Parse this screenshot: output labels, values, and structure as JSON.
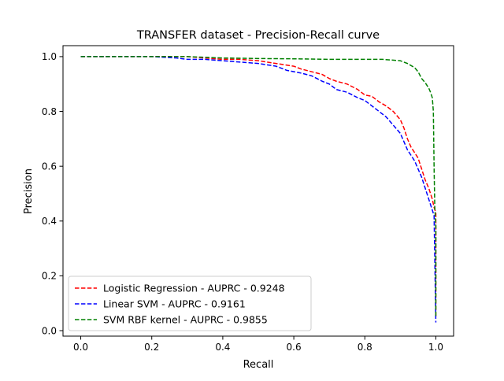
{
  "chart_data": {
    "type": "line",
    "title": "TRANSFER dataset - Precision-Recall curve",
    "xlabel": "Recall",
    "ylabel": "Precision",
    "xlim": [
      -0.05,
      1.05
    ],
    "ylim": [
      -0.02,
      1.04
    ],
    "xticks": [
      "0.0",
      "0.2",
      "0.4",
      "0.6",
      "0.8",
      "1.0"
    ],
    "yticks": [
      "0.0",
      "0.2",
      "0.4",
      "0.6",
      "0.8",
      "1.0"
    ],
    "grid": false,
    "legend_position": "lower-left",
    "series": [
      {
        "name": "Logistic Regression - AUPRC - 0.9248",
        "color": "#ff0000",
        "style": "dashed",
        "x": [
          0.0,
          0.1,
          0.2,
          0.3,
          0.35,
          0.4,
          0.45,
          0.5,
          0.55,
          0.6,
          0.62,
          0.65,
          0.68,
          0.7,
          0.72,
          0.75,
          0.78,
          0.8,
          0.82,
          0.84,
          0.86,
          0.88,
          0.9,
          0.91,
          0.92,
          0.93,
          0.94,
          0.95,
          0.96,
          0.97,
          0.98,
          0.99,
          0.995,
          1.0,
          1.0
        ],
        "y": [
          1.0,
          1.0,
          1.0,
          1.0,
          0.995,
          0.99,
          0.99,
          0.985,
          0.975,
          0.965,
          0.955,
          0.945,
          0.935,
          0.92,
          0.91,
          0.9,
          0.88,
          0.86,
          0.855,
          0.835,
          0.82,
          0.8,
          0.77,
          0.74,
          0.7,
          0.67,
          0.65,
          0.63,
          0.59,
          0.55,
          0.52,
          0.48,
          0.45,
          0.43,
          0.05
        ]
      },
      {
        "name": "Linear SVM - AUPRC - 0.9161",
        "color": "#0000ff",
        "style": "dashed",
        "x": [
          0.0,
          0.1,
          0.2,
          0.27,
          0.3,
          0.35,
          0.4,
          0.45,
          0.5,
          0.55,
          0.58,
          0.62,
          0.65,
          0.68,
          0.7,
          0.72,
          0.75,
          0.78,
          0.8,
          0.82,
          0.84,
          0.86,
          0.88,
          0.9,
          0.91,
          0.92,
          0.93,
          0.94,
          0.95,
          0.96,
          0.97,
          0.98,
          0.99,
          0.995,
          1.0,
          1.0
        ],
        "y": [
          1.0,
          1.0,
          1.0,
          0.995,
          0.99,
          0.99,
          0.985,
          0.98,
          0.975,
          0.965,
          0.95,
          0.94,
          0.93,
          0.91,
          0.9,
          0.88,
          0.87,
          0.85,
          0.84,
          0.82,
          0.8,
          0.78,
          0.75,
          0.72,
          0.69,
          0.66,
          0.64,
          0.62,
          0.59,
          0.56,
          0.52,
          0.48,
          0.44,
          0.42,
          0.03,
          0.03
        ]
      },
      {
        "name": "SVM RBF kernel - AUPRC - 0.9855",
        "color": "#008000",
        "style": "dashed",
        "x": [
          0.0,
          0.1,
          0.2,
          0.3,
          0.4,
          0.5,
          0.6,
          0.7,
          0.8,
          0.85,
          0.9,
          0.92,
          0.94,
          0.95,
          0.96,
          0.97,
          0.98,
          0.985,
          0.99,
          0.993,
          0.995,
          0.997,
          1.0,
          1.0
        ],
        "y": [
          1.0,
          1.0,
          1.0,
          1.0,
          0.995,
          0.993,
          0.992,
          0.99,
          0.99,
          0.99,
          0.985,
          0.975,
          0.96,
          0.945,
          0.92,
          0.905,
          0.885,
          0.87,
          0.85,
          0.8,
          0.6,
          0.45,
          0.38,
          0.05
        ]
      }
    ]
  }
}
